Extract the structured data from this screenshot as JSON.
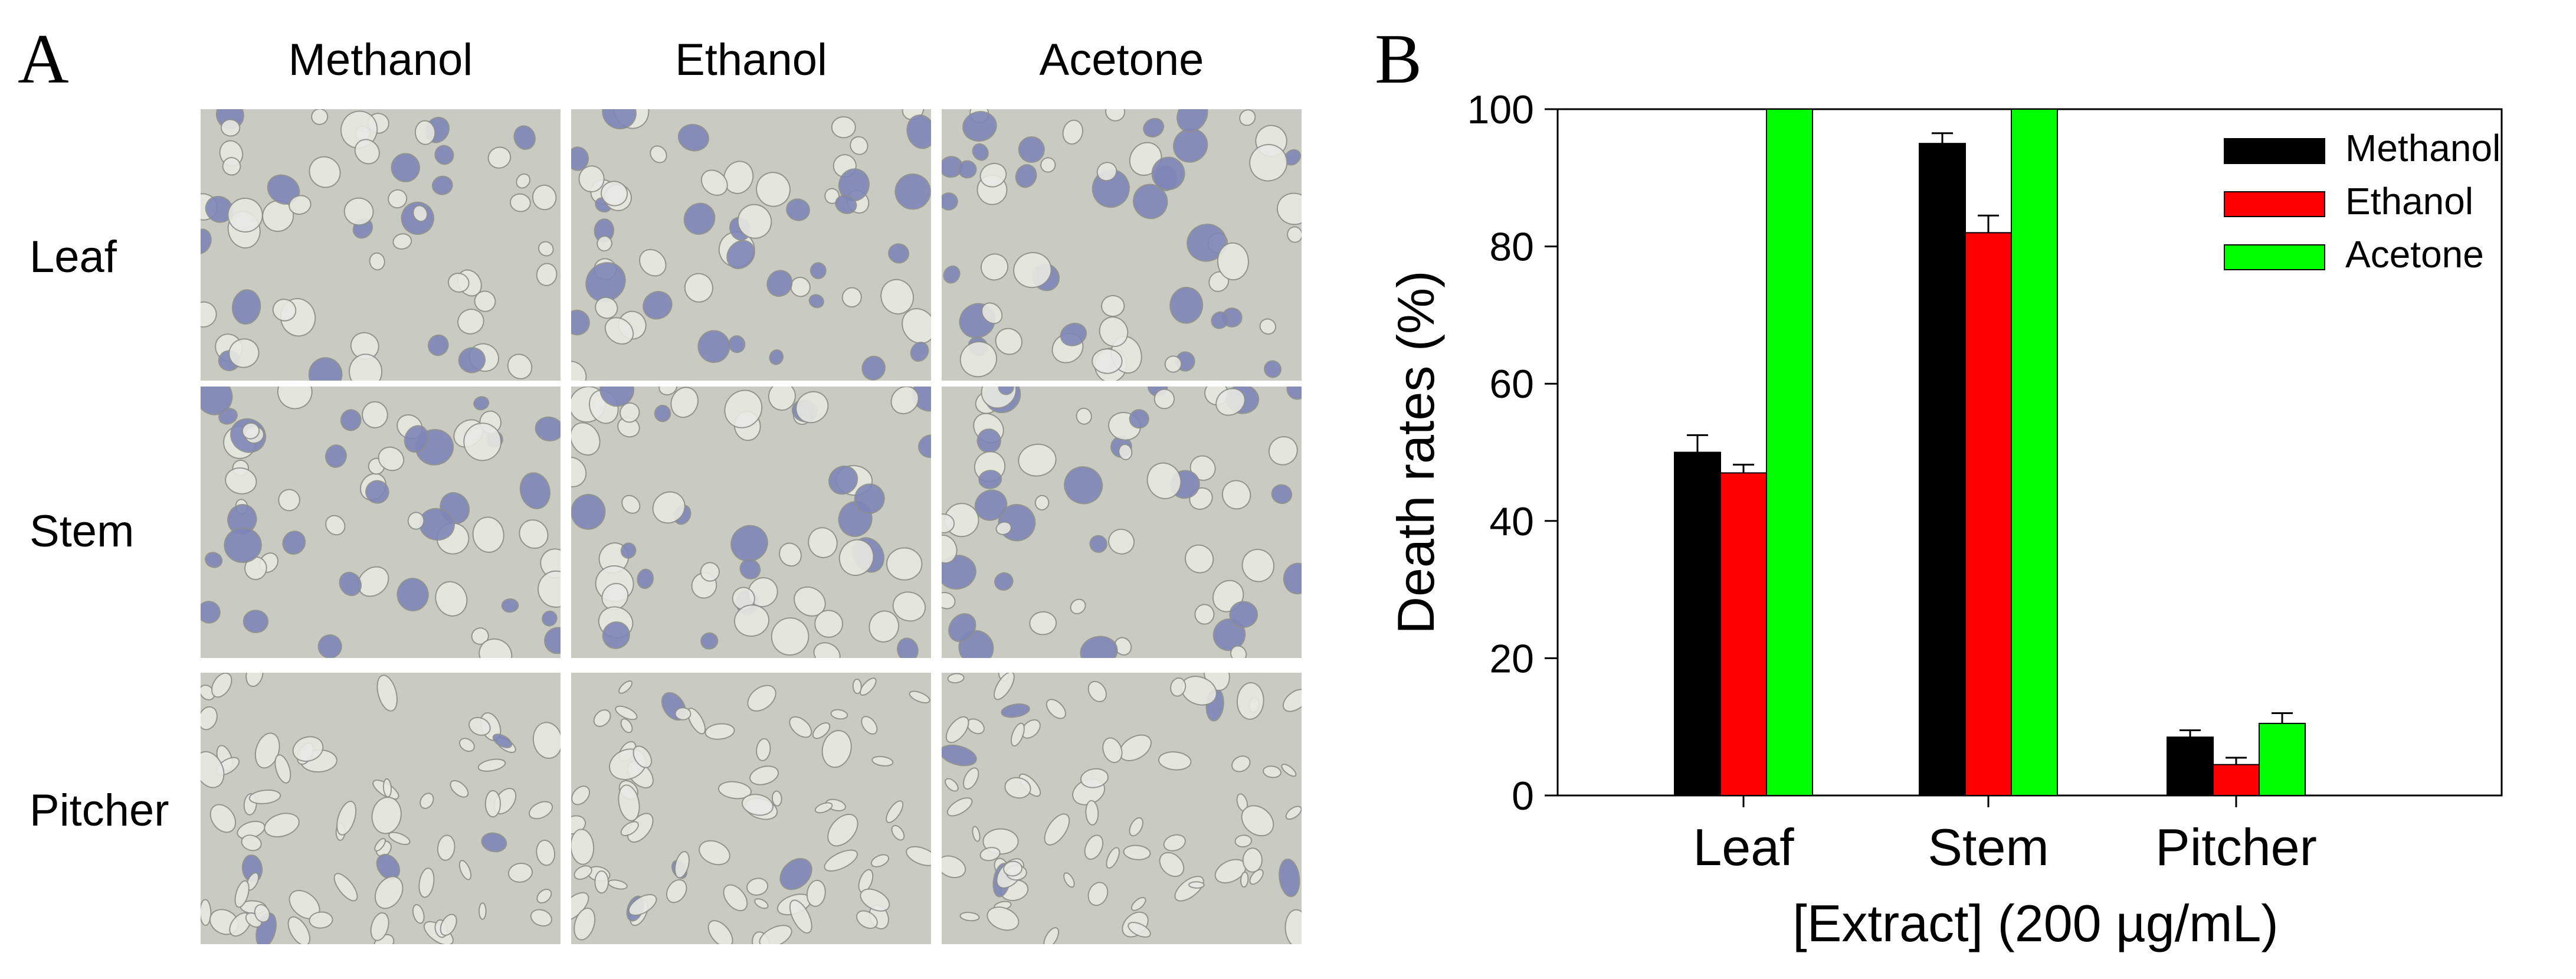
{
  "panel_a": {
    "letter": "A",
    "columns": [
      "Methanol",
      "Ethanol",
      "Acetone"
    ],
    "rows": [
      "Leaf",
      "Stem",
      "Pitcher"
    ],
    "cell_colors": {
      "background": "#c9cbc2",
      "cell": "#e8e9e2",
      "stained": "#7f86b8",
      "outline": "#8d908a"
    }
  },
  "panel_b": {
    "letter": "B"
  },
  "chart_data": {
    "type": "bar",
    "categories": [
      "Leaf",
      "Stem",
      "Pitcher"
    ],
    "series": [
      {
        "name": "Methanol",
        "color": "#000000",
        "values": [
          50,
          95,
          8.5
        ],
        "errors": [
          2.5,
          1.5,
          1.0
        ]
      },
      {
        "name": "Ethanol",
        "color": "#ff0000",
        "values": [
          47,
          82,
          4.5
        ],
        "errors": [
          1.2,
          2.5,
          1.0
        ]
      },
      {
        "name": "Acetone",
        "color": "#00ff00",
        "values": [
          100,
          100,
          10.5
        ],
        "errors": [
          0,
          0,
          1.5
        ]
      }
    ],
    "xlabel": "[Extract] (200 µg/mL)",
    "ylabel": "Death rates (%)",
    "ylim": [
      0,
      100
    ],
    "yticks": [
      0,
      20,
      40,
      60,
      80,
      100
    ],
    "legend_position": "top-right",
    "grid": false
  }
}
